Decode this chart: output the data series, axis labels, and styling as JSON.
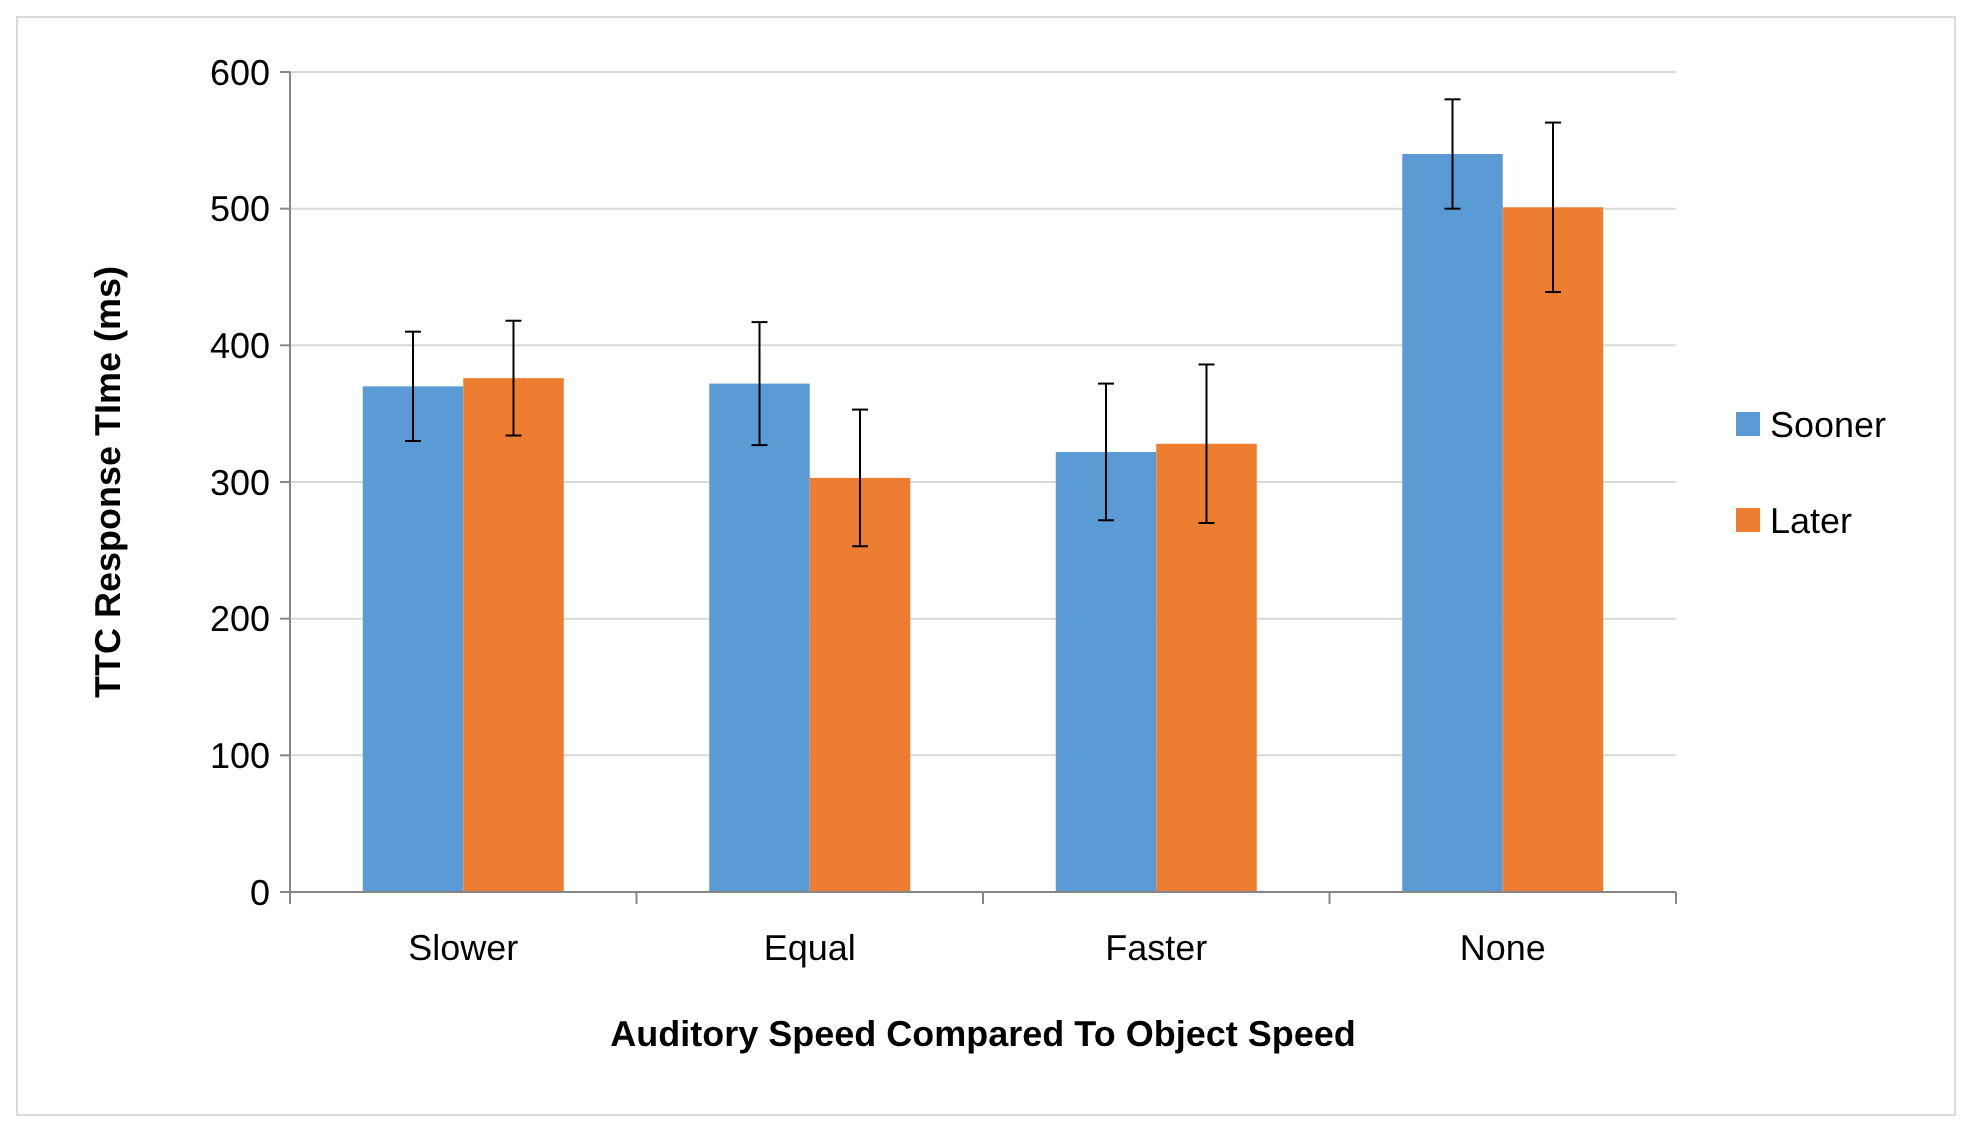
{
  "chart_data": {
    "type": "bar",
    "xlabel": "Auditory Speed Compared To Object Speed",
    "ylabel": "TTC Response TIme (ms)",
    "categories": [
      "Slower",
      "Equal",
      "Faster",
      "None"
    ],
    "series": [
      {
        "name": "Sooner",
        "color": "#5b9bd5",
        "values": [
          370,
          372,
          322,
          540
        ],
        "errors": [
          40,
          45,
          50,
          40
        ]
      },
      {
        "name": "Later",
        "color": "#ed7d31",
        "values": [
          376,
          303,
          328,
          501
        ],
        "errors": [
          42,
          50,
          58,
          62
        ]
      }
    ],
    "ylim": [
      0,
      600
    ],
    "yticks": [
      0,
      100,
      200,
      300,
      400,
      500,
      600
    ],
    "grid": "y",
    "legend": "right"
  }
}
